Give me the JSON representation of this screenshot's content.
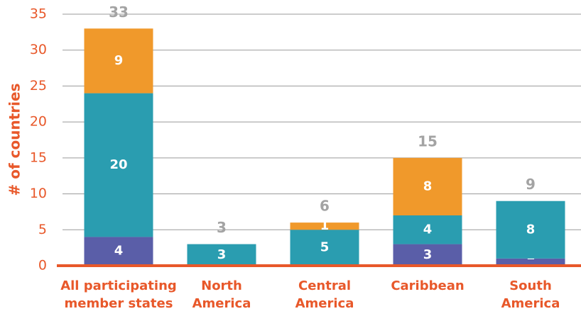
{
  "chart_data": {
    "type": "bar",
    "stacked": true,
    "ylabel": "# of countries",
    "categories": [
      [
        "All participating",
        "member states"
      ],
      [
        "North",
        "America"
      ],
      [
        "Central",
        "America"
      ],
      [
        "Caribbean"
      ],
      [
        "South",
        "America"
      ]
    ],
    "series": [
      {
        "color": "#5a5ea8",
        "values": [
          4,
          null,
          null,
          3,
          1
        ]
      },
      {
        "color": "#2a9db0",
        "values": [
          20,
          3,
          5,
          4,
          8
        ]
      },
      {
        "color": "#f0992b",
        "values": [
          9,
          null,
          1,
          8,
          null
        ]
      }
    ],
    "totals": [
      33,
      3,
      6,
      15,
      9
    ],
    "ylim": [
      0,
      35
    ],
    "yticks": [
      0,
      5,
      10,
      15,
      20,
      25,
      30,
      35
    ],
    "grid": true
  }
}
